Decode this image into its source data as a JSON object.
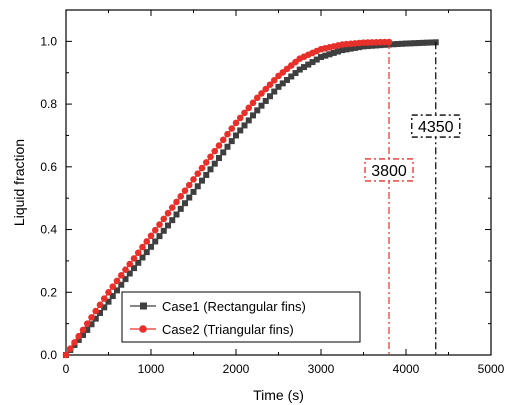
{
  "chart_data": {
    "type": "scatter",
    "xlabel": "Time (s)",
    "ylabel": "Liquid fraction",
    "xlim": [
      0,
      5000
    ],
    "ylim": [
      0,
      1.1
    ],
    "x_ticks": [
      0,
      1000,
      2000,
      3000,
      4000,
      5000
    ],
    "x_tick_labels": [
      "0",
      "1000",
      "2000",
      "3000",
      "4000",
      "5000"
    ],
    "y_ticks": [
      0.0,
      0.2,
      0.4,
      0.6,
      0.8,
      1.0
    ],
    "y_tick_labels": [
      "0.0",
      "0.2",
      "0.4",
      "0.6",
      "0.8",
      "1.0"
    ],
    "grid": false,
    "legend_position": "bottom-left",
    "x": [
      0,
      250,
      500,
      750,
      1000,
      1250,
      1500,
      1750,
      2000,
      2250,
      2500,
      2750,
      3000,
      3250,
      3500,
      3800,
      4000,
      4350
    ],
    "series": [
      {
        "name": "Case1 (Rectangular fins)",
        "color": "#3f3f3f",
        "marker": "square",
        "values": [
          0.0,
          0.08,
          0.17,
          0.26,
          0.345,
          0.43,
          0.52,
          0.61,
          0.7,
          0.78,
          0.855,
          0.91,
          0.95,
          0.972,
          0.984,
          0.99,
          0.993,
          0.997
        ]
      },
      {
        "name": "Case2 (Triangular fins)",
        "color": "#e8302a",
        "marker": "circle",
        "values": [
          0.0,
          0.1,
          0.2,
          0.29,
          0.38,
          0.47,
          0.56,
          0.65,
          0.74,
          0.82,
          0.89,
          0.945,
          0.975,
          0.99,
          0.996,
          0.998,
          null,
          null
        ]
      }
    ],
    "annotations": [
      {
        "text": "3800",
        "x": 3800,
        "y": 0.59,
        "color": "#e8302a"
      },
      {
        "text": "4350",
        "x": 4350,
        "y": 0.73,
        "color": "#000000"
      }
    ],
    "vlines": [
      {
        "x": 3800,
        "y_top": 0.998,
        "color": "#e8302a"
      },
      {
        "x": 4350,
        "y_top": 0.997,
        "color": "#000000"
      }
    ]
  }
}
